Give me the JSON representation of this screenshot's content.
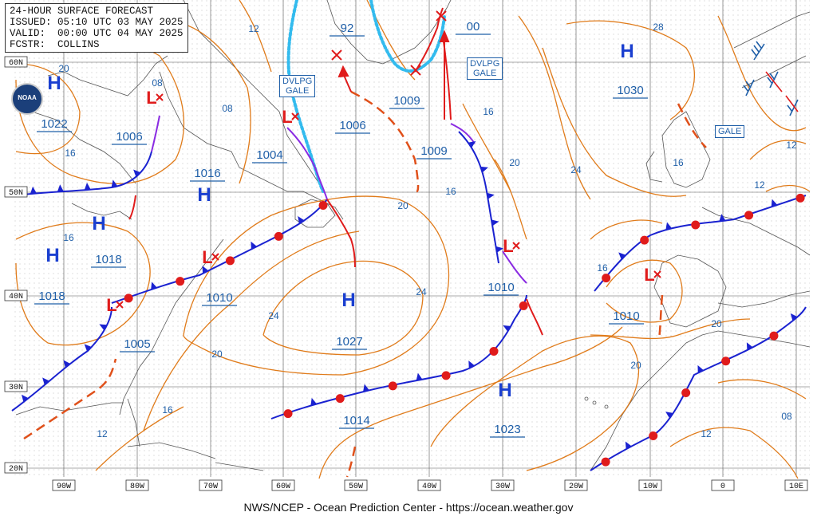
{
  "header": {
    "line1": "24-HOUR SURFACE FORECAST",
    "line2": "ISSUED: 05:10 UTC 03 MAY 2025",
    "line3": "VALID:  00:00 UTC 04 MAY 2025",
    "line4": "FCSTR:  COLLINS"
  },
  "logo_text": "NOAA",
  "footer": "NWS/NCEP - Ocean Prediction Center - https://ocean.weather.gov",
  "lon_labels": [
    "90W",
    "80W",
    "70W",
    "60W",
    "50W",
    "40W",
    "30W",
    "20W",
    "10W",
    "0",
    "10E"
  ],
  "lat_labels": [
    "60N",
    "50N",
    "40N",
    "30N",
    "20N"
  ],
  "isobar_labels": [
    "12",
    "20",
    "08",
    "16",
    "08",
    "16",
    "12",
    "16",
    "20",
    "24",
    "20",
    "24",
    "28",
    "20",
    "24",
    "20",
    "16",
    "12",
    "16",
    "20",
    "16",
    "12",
    "08",
    "12",
    "16"
  ],
  "pressure_systems": [
    {
      "type": "H",
      "value": "1022"
    },
    {
      "type": "L",
      "value": "1006"
    },
    {
      "type": "H",
      "value": "1018"
    },
    {
      "type": "H",
      "value": "1018"
    },
    {
      "type": "H",
      "value": "1016"
    },
    {
      "type": "L",
      "value": "1004"
    },
    {
      "type": "L",
      "value": "1006"
    },
    {
      "type": "L",
      "value": "1009"
    },
    {
      "type": "L",
      "value": "1009"
    },
    {
      "type": "H",
      "value": "1030"
    },
    {
      "type": "L",
      "value": "1010"
    },
    {
      "type": "L",
      "value": "1005"
    },
    {
      "type": "H",
      "value": "1027"
    },
    {
      "type": "L",
      "value": "1010"
    },
    {
      "type": "L",
      "value": "1010"
    },
    {
      "type": "H",
      "value": "1023"
    },
    {
      "type": "",
      "value": "1014"
    },
    {
      "type": "",
      "value": "92"
    },
    {
      "type": "",
      "value": "00"
    }
  ],
  "warnings": [
    {
      "line1": "DVLPG",
      "line2": "GALE"
    },
    {
      "line1": "DVLPG",
      "line2": "GALE"
    },
    {
      "line1": "GALE",
      "line2": ""
    }
  ],
  "colors": {
    "isobar": "#e07b1a",
    "high": "#1a3fd0",
    "low": "#e01b1b",
    "cold_front": "#1a22d0",
    "warm_front": "#e01b1b",
    "occluded": "#8a2be2",
    "ice": "#33bbee",
    "grid": "#555555"
  }
}
